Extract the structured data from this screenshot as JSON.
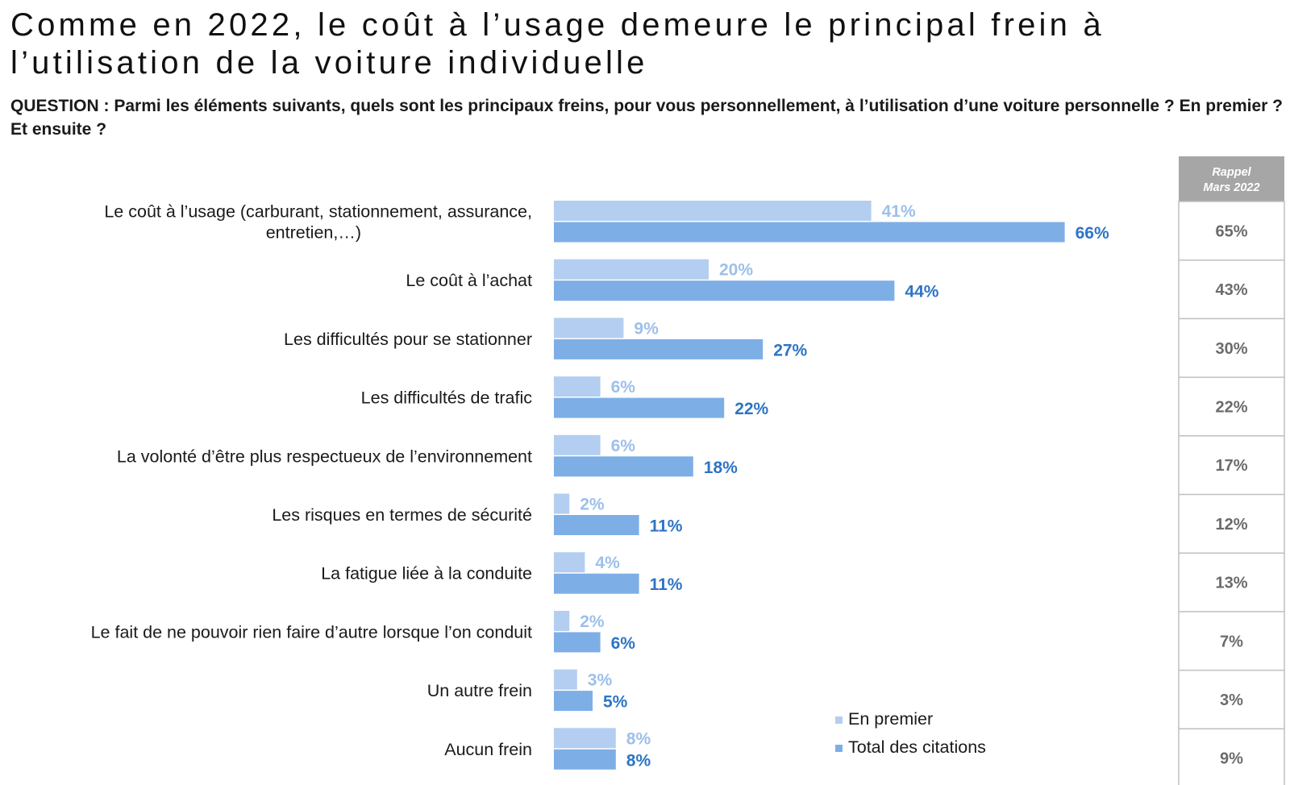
{
  "header": {
    "title": "Comme en 2022, le coût à l’usage demeure le principal frein à l’utilisation de la voiture individuelle",
    "question": "QUESTION : Parmi les éléments suivants, quels sont les principaux freins, pour vous personnellement, à l’utilisation d’une voiture personnelle ? En premier ? Et ensuite ?"
  },
  "colors": {
    "first": "#b3cef0",
    "total": "#7eaee6",
    "first_label": "#9dc0ea",
    "total_label": "#2e74c5",
    "rappel_header_bg": "#a6a6a6",
    "rappel_border": "#bfbfbf"
  },
  "chart_data": {
    "type": "bar",
    "orientation": "horizontal",
    "categories": [
      [
        "Le coût à l’usage (carburant, stationnement, assurance,",
        "entretien,…)"
      ],
      [
        "Le coût à l’achat"
      ],
      [
        "Les difficultés pour se stationner"
      ],
      [
        "Les difficultés de trafic"
      ],
      [
        "La volonté d’être plus respectueux de l’environnement"
      ],
      [
        "Les risques en termes de sécurité"
      ],
      [
        "La fatigue liée à la conduite"
      ],
      [
        "Le fait de ne pouvoir rien faire d’autre lorsque l’on conduit"
      ],
      [
        "Un autre frein"
      ],
      [
        "Aucun frein"
      ]
    ],
    "series": [
      {
        "name": "En premier",
        "values": [
          41,
          20,
          9,
          6,
          6,
          2,
          4,
          2,
          3,
          8
        ],
        "labels": [
          "41%",
          "20%",
          "9%",
          "6%",
          "6%",
          "2%",
          "4%",
          "2%",
          "3%",
          "8%"
        ]
      },
      {
        "name": "Total des citations",
        "values": [
          66,
          44,
          27,
          22,
          18,
          11,
          11,
          6,
          5,
          8
        ],
        "labels": [
          "66%",
          "44%",
          "27%",
          "22%",
          "18%",
          "11%",
          "11%",
          "6%",
          "5%",
          "8%"
        ]
      }
    ],
    "unit": "%",
    "legend": {
      "position": "bottom-right",
      "entries": [
        "En premier",
        "Total des citations"
      ]
    },
    "rappel": {
      "header": [
        "Rappel",
        "Mars 2022"
      ],
      "values": [
        "65%",
        "43%",
        "30%",
        "22%",
        "17%",
        "12%",
        "13%",
        "7%",
        "3%",
        "9%"
      ]
    }
  }
}
